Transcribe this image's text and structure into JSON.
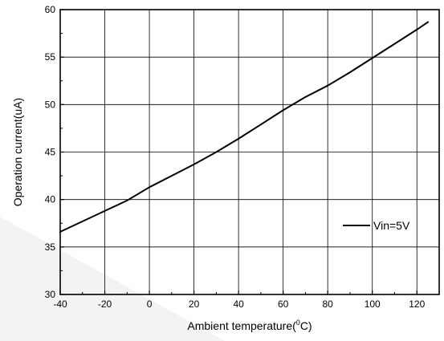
{
  "chart_data": {
    "type": "line",
    "title": "",
    "xlabel": {
      "prefix": "Ambient temperature(",
      "superscript": "0",
      "suffix": "C)"
    },
    "ylabel": "Operation current(uA)",
    "xlim": [
      -40,
      130
    ],
    "ylim": [
      30,
      60
    ],
    "xticks": [
      -40,
      -20,
      0,
      20,
      40,
      60,
      80,
      100,
      120
    ],
    "yticks": [
      30,
      35,
      40,
      45,
      50,
      55,
      60
    ],
    "grid": true,
    "legend_position": "lower-right",
    "series": [
      {
        "name": "Vin=5V",
        "color": "#000000",
        "x": [
          -40,
          -30,
          -20,
          -10,
          0,
          10,
          20,
          30,
          40,
          50,
          60,
          70,
          80,
          90,
          100,
          110,
          120,
          125
        ],
        "y": [
          36.6,
          37.7,
          38.8,
          39.9,
          41.3,
          42.5,
          43.7,
          45.0,
          46.4,
          47.9,
          49.4,
          50.8,
          52.0,
          53.4,
          54.9,
          56.4,
          57.9,
          58.7
        ]
      }
    ]
  }
}
